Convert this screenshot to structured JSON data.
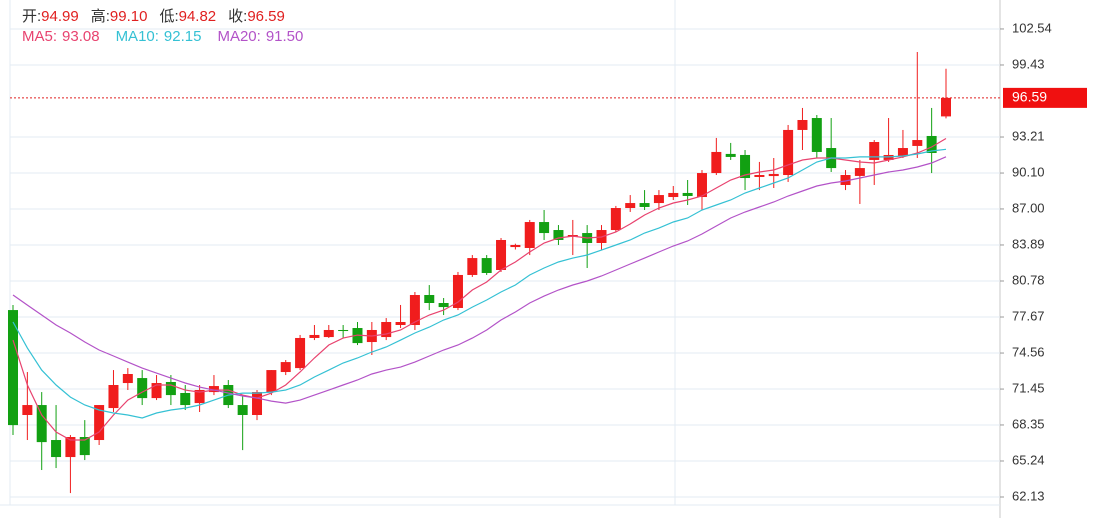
{
  "chart_data": {
    "type": "candlestick",
    "quote": [
      {
        "name": "开:",
        "value": 94.99
      },
      {
        "name": "高:",
        "value": 99.1,
        "value_label": "99.10"
      },
      {
        "name": "低:",
        "value": 94.82
      },
      {
        "name": "收:",
        "value": 96.59
      }
    ],
    "up_color": "#f01d1d",
    "down_color": "#12a012",
    "quote_color": "#e02020",
    "open": [
      78.27,
      69.21,
      70.07,
      67.05,
      65.58,
      67.31,
      67.05,
      69.81,
      71.97,
      72.4,
      70.67,
      72.06,
      71.11,
      70.24,
      71.19,
      71.8,
      70.07,
      69.21,
      71.19,
      72.92,
      73.26,
      75.86,
      75.94,
      76.55,
      76.72,
      75.51,
      75.94,
      76.98,
      76.98,
      79.57,
      78.88,
      78.45,
      81.3,
      82.76,
      81.73,
      83.71,
      83.63,
      85.87,
      85.18,
      84.58,
      84.92,
      84.06,
      85.18,
      87.08,
      87.51,
      87.51,
      88.03,
      88.38,
      88.03,
      90.1,
      91.75,
      91.66,
      89.76,
      89.84,
      89.93,
      93.82,
      94.85,
      92.26,
      89.07,
      89.85,
      91.23,
      91.23,
      91.57,
      92.44,
      93.3,
      94.99
    ],
    "high": [
      78.71,
      72.92,
      71.19,
      70.07,
      67.48,
      68.77,
      70.07,
      73.09,
      73.26,
      73.09,
      72.66,
      72.66,
      71.8,
      71.8,
      72.66,
      72.23,
      70.93,
      71.37,
      73.09,
      73.96,
      76.12,
      76.98,
      76.98,
      76.98,
      77.24,
      77.24,
      77.58,
      78.71,
      79.83,
      80.43,
      79.31,
      81.56,
      83.02,
      83.02,
      84.49,
      84.0,
      86.05,
      86.91,
      85.61,
      86.05,
      85.61,
      85.61,
      87.26,
      88.2,
      88.63,
      88.63,
      88.98,
      89.5,
      90.36,
      93.13,
      92.7,
      92.09,
      91.06,
      91.4,
      94.25,
      95.72,
      95.11,
      94.85,
      90.36,
      91.23,
      92.95,
      94.85,
      93.82,
      100.55,
      95.72,
      99.1
    ],
    "low": [
      67.48,
      67.05,
      64.46,
      64.63,
      62.47,
      65.32,
      66.62,
      69.47,
      71.37,
      70.07,
      70.5,
      70.07,
      69.64,
      69.47,
      70.93,
      69.81,
      66.18,
      68.77,
      70.93,
      72.66,
      73.09,
      75.68,
      75.86,
      75.86,
      75.25,
      74.39,
      75.68,
      76.72,
      76.55,
      78.27,
      77.84,
      78.27,
      81.13,
      81.3,
      81.56,
      83.5,
      83.02,
      84.32,
      83.89,
      83.02,
      81.9,
      83.46,
      85.01,
      86.74,
      86.91,
      86.91,
      87.77,
      87.34,
      86.91,
      89.93,
      91.23,
      88.63,
      88.63,
      88.81,
      89.33,
      92.09,
      91.4,
      90.19,
      88.63,
      87.43,
      89.07,
      91.06,
      91.4,
      91.4,
      90.1,
      94.82
    ],
    "close": [
      68.34,
      70.07,
      66.87,
      65.58,
      67.31,
      65.75,
      70.07,
      71.8,
      72.75,
      70.67,
      71.97,
      70.93,
      70.07,
      71.37,
      71.71,
      70.07,
      69.21,
      71.19,
      73.09,
      73.78,
      75.86,
      76.12,
      76.55,
      76.46,
      75.42,
      76.55,
      77.24,
      77.24,
      79.57,
      78.88,
      78.53,
      81.3,
      82.76,
      81.47,
      84.32,
      83.89,
      85.87,
      84.92,
      84.32,
      84.75,
      84.06,
      85.18,
      87.08,
      87.51,
      87.17,
      88.2,
      88.38,
      88.12,
      90.1,
      91.92,
      91.49,
      89.67,
      89.93,
      90.02,
      93.82,
      94.68,
      91.92,
      90.53,
      89.93,
      90.53,
      92.78,
      91.66,
      92.26,
      92.95,
      91.83,
      96.59
    ],
    "ma": [
      {
        "name": "MA5:",
        "color": "#e8436f",
        "latest": 93.08,
        "values": [
          75.68,
          71.8,
          69.21,
          67.74,
          67.05,
          67.05,
          67.74,
          69.21,
          70.5,
          71.19,
          71.8,
          71.8,
          71.36,
          71.19,
          71.36,
          71.36,
          70.93,
          70.67,
          71.1,
          71.8,
          72.92,
          74.13,
          75.25,
          75.85,
          76.11,
          76.03,
          76.2,
          76.55,
          77.24,
          77.84,
          78.27,
          78.96,
          80.0,
          80.69,
          81.73,
          82.42,
          83.28,
          84.06,
          84.49,
          84.66,
          84.49,
          84.58,
          85.01,
          85.7,
          86.48,
          87.08,
          87.51,
          87.77,
          88.12,
          88.81,
          89.5,
          89.93,
          90.19,
          90.36,
          90.8,
          91.23,
          91.4,
          91.4,
          91.23,
          91.05,
          90.97,
          91.23,
          91.49,
          91.83,
          92.35,
          93.08
        ]
      },
      {
        "name": "MA10:",
        "color": "#35c1d4",
        "latest": 92.15,
        "values": [
          77.24,
          74.99,
          73.09,
          71.8,
          70.76,
          70.07,
          69.64,
          69.38,
          69.21,
          68.95,
          69.38,
          69.64,
          69.81,
          70.07,
          70.5,
          70.93,
          71.1,
          71.1,
          71.19,
          71.36,
          71.8,
          72.49,
          73.09,
          73.7,
          74.13,
          74.65,
          75.08,
          75.68,
          76.29,
          76.8,
          77.41,
          77.84,
          78.53,
          79.14,
          79.83,
          80.43,
          81.3,
          81.9,
          82.42,
          82.76,
          83.02,
          83.45,
          83.89,
          84.32,
          84.92,
          85.35,
          85.87,
          86.22,
          86.91,
          87.34,
          87.77,
          88.38,
          88.81,
          89.24,
          89.67,
          90.36,
          91.05,
          91.4,
          91.4,
          91.49,
          91.49,
          91.49,
          91.57,
          91.74,
          92.0,
          92.15
        ]
      },
      {
        "name": "MA20:",
        "color": "#b353c8",
        "latest": {
          "value": 91.5,
          "label": "91.50"
        },
        "values": [
          79.57,
          78.7,
          77.84,
          76.98,
          76.29,
          75.51,
          74.82,
          74.3,
          73.78,
          73.26,
          72.83,
          72.4,
          71.97,
          71.62,
          71.36,
          71.1,
          70.85,
          70.67,
          70.41,
          70.24,
          70.5,
          70.93,
          71.36,
          71.8,
          72.23,
          72.75,
          73.09,
          73.35,
          73.78,
          74.3,
          74.82,
          75.25,
          75.85,
          76.55,
          77.41,
          78.1,
          78.88,
          79.48,
          80.0,
          80.43,
          80.78,
          81.21,
          81.73,
          82.25,
          82.76,
          83.28,
          83.8,
          84.23,
          84.84,
          85.53,
          86.22,
          86.74,
          87.17,
          87.6,
          88.12,
          88.55,
          88.98,
          89.24,
          89.41,
          89.67,
          89.93,
          90.19,
          90.36,
          90.62,
          90.97,
          91.5
        ]
      }
    ],
    "last_price": 96.59,
    "ylim": [
      61.44,
      105.04
    ],
    "yticks": [
      62.13,
      65.24,
      68.35,
      71.45,
      74.56,
      77.67,
      80.78,
      83.89,
      {
        "value": 87.0,
        "label": "87.00"
      },
      {
        "value": 90.1,
        "label": "90.10"
      },
      93.21,
      99.43,
      102.54
    ],
    "grid": true
  }
}
